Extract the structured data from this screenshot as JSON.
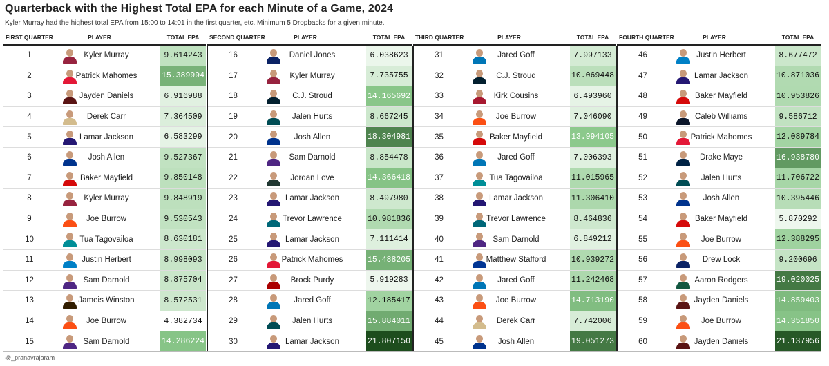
{
  "title": "Quarterback with the Highest Total EPA for each Minute of a Game, 2024",
  "subtitle": "Kyler Murray had the highest total EPA from 15:00 to 14:01 in the first quarter, etc. Minimum 5 Dropbacks for a given minute.",
  "footer": "@_pranavrajaram",
  "headers": {
    "player": "PLAYER",
    "epa": "TOTAL EPA"
  },
  "chart_data": {
    "type": "table",
    "color_scale": {
      "low": "#ffffff",
      "mid": "#8cc98c",
      "high": "#1d4d1d",
      "domain": [
        4.38,
        21.81
      ]
    },
    "quarters": [
      {
        "label": "FIRST QUARTER",
        "rows": [
          {
            "minute": "1",
            "player": "Kyler Murray",
            "epa": "9.614243",
            "team_color": "#97233F"
          },
          {
            "minute": "2",
            "player": "Patrick Mahomes",
            "epa": "15.389994",
            "team_color": "#E31837"
          },
          {
            "minute": "3",
            "player": "Jayden Daniels",
            "epa": "6.916988",
            "team_color": "#5A1414"
          },
          {
            "minute": "4",
            "player": "Derek Carr",
            "epa": "7.364509",
            "team_color": "#D3BC8D"
          },
          {
            "minute": "5",
            "player": "Lamar Jackson",
            "epa": "6.583299",
            "team_color": "#241773"
          },
          {
            "minute": "6",
            "player": "Josh Allen",
            "epa": "9.527367",
            "team_color": "#00338D"
          },
          {
            "minute": "7",
            "player": "Baker Mayfield",
            "epa": "9.850148",
            "team_color": "#D50A0A"
          },
          {
            "minute": "8",
            "player": "Kyler Murray",
            "epa": "9.848919",
            "team_color": "#97233F"
          },
          {
            "minute": "9",
            "player": "Joe Burrow",
            "epa": "9.530543",
            "team_color": "#FB4F14"
          },
          {
            "minute": "10",
            "player": "Tua Tagovailoa",
            "epa": "8.630181",
            "team_color": "#008E97"
          },
          {
            "minute": "11",
            "player": "Justin Herbert",
            "epa": "8.998093",
            "team_color": "#0080C6"
          },
          {
            "minute": "12",
            "player": "Sam Darnold",
            "epa": "8.875704",
            "team_color": "#4F2683"
          },
          {
            "minute": "13",
            "player": "Jameis Winston",
            "epa": "8.572531",
            "team_color": "#311D00"
          },
          {
            "minute": "14",
            "player": "Joe Burrow",
            "epa": "4.382734",
            "team_color": "#FB4F14"
          },
          {
            "minute": "15",
            "player": "Sam Darnold",
            "epa": "14.286224",
            "team_color": "#4F2683"
          }
        ]
      },
      {
        "label": "SECOND QUARTER",
        "rows": [
          {
            "minute": "16",
            "player": "Daniel Jones",
            "epa": "6.038623",
            "team_color": "#0B2265"
          },
          {
            "minute": "17",
            "player": "Kyler Murray",
            "epa": "7.735755",
            "team_color": "#97233F"
          },
          {
            "minute": "18",
            "player": "C.J. Stroud",
            "epa": "14.165692",
            "team_color": "#03202F"
          },
          {
            "minute": "19",
            "player": "Jalen Hurts",
            "epa": "8.667245",
            "team_color": "#004C54"
          },
          {
            "minute": "20",
            "player": "Josh Allen",
            "epa": "18.304981",
            "team_color": "#00338D"
          },
          {
            "minute": "21",
            "player": "Sam Darnold",
            "epa": "8.854478",
            "team_color": "#4F2683"
          },
          {
            "minute": "22",
            "player": "Jordan Love",
            "epa": "14.366418",
            "team_color": "#203731"
          },
          {
            "minute": "23",
            "player": "Lamar Jackson",
            "epa": "8.497980",
            "team_color": "#241773"
          },
          {
            "minute": "24",
            "player": "Trevor Lawrence",
            "epa": "10.981836",
            "team_color": "#006778"
          },
          {
            "minute": "25",
            "player": "Lamar Jackson",
            "epa": "7.111414",
            "team_color": "#241773"
          },
          {
            "minute": "26",
            "player": "Patrick Mahomes",
            "epa": "15.488205",
            "team_color": "#E31837"
          },
          {
            "minute": "27",
            "player": "Brock Purdy",
            "epa": "5.919283",
            "team_color": "#AA0000"
          },
          {
            "minute": "28",
            "player": "Jared Goff",
            "epa": "12.185417",
            "team_color": "#0076B6"
          },
          {
            "minute": "29",
            "player": "Jalen Hurts",
            "epa": "15.884011",
            "team_color": "#004C54"
          },
          {
            "minute": "30",
            "player": "Lamar Jackson",
            "epa": "21.807150",
            "team_color": "#241773"
          }
        ]
      },
      {
        "label": "THIRD QUARTER",
        "rows": [
          {
            "minute": "31",
            "player": "Jared Goff",
            "epa": "7.997133",
            "team_color": "#0076B6"
          },
          {
            "minute": "32",
            "player": "C.J. Stroud",
            "epa": "10.069448",
            "team_color": "#03202F"
          },
          {
            "minute": "33",
            "player": "Kirk Cousins",
            "epa": "6.493960",
            "team_color": "#A71930"
          },
          {
            "minute": "34",
            "player": "Joe Burrow",
            "epa": "7.046090",
            "team_color": "#FB4F14"
          },
          {
            "minute": "35",
            "player": "Baker Mayfield",
            "epa": "13.994105",
            "team_color": "#D50A0A"
          },
          {
            "minute": "36",
            "player": "Jared Goff",
            "epa": "7.006393",
            "team_color": "#0076B6"
          },
          {
            "minute": "37",
            "player": "Tua Tagovailoa",
            "epa": "11.015965",
            "team_color": "#008E97"
          },
          {
            "minute": "38",
            "player": "Lamar Jackson",
            "epa": "11.306410",
            "team_color": "#241773"
          },
          {
            "minute": "39",
            "player": "Trevor Lawrence",
            "epa": "8.464836",
            "team_color": "#006778"
          },
          {
            "minute": "40",
            "player": "Sam Darnold",
            "epa": "6.849212",
            "team_color": "#4F2683"
          },
          {
            "minute": "41",
            "player": "Matthew Stafford",
            "epa": "10.939272",
            "team_color": "#003594"
          },
          {
            "minute": "42",
            "player": "Jared Goff",
            "epa": "11.242468",
            "team_color": "#0076B6"
          },
          {
            "minute": "43",
            "player": "Joe Burrow",
            "epa": "14.713190",
            "team_color": "#FB4F14"
          },
          {
            "minute": "44",
            "player": "Derek Carr",
            "epa": "7.742006",
            "team_color": "#D3BC8D"
          },
          {
            "minute": "45",
            "player": "Josh Allen",
            "epa": "19.051273",
            "team_color": "#00338D"
          }
        ]
      },
      {
        "label": "FOURTH QUARTER",
        "rows": [
          {
            "minute": "46",
            "player": "Justin Herbert",
            "epa": "8.677472",
            "team_color": "#0080C6"
          },
          {
            "minute": "47",
            "player": "Lamar Jackson",
            "epa": "10.871036",
            "team_color": "#241773"
          },
          {
            "minute": "48",
            "player": "Baker Mayfield",
            "epa": "10.953826",
            "team_color": "#D50A0A"
          },
          {
            "minute": "49",
            "player": "Caleb Williams",
            "epa": "9.586712",
            "team_color": "#0B162A"
          },
          {
            "minute": "50",
            "player": "Patrick Mahomes",
            "epa": "12.089784",
            "team_color": "#E31837"
          },
          {
            "minute": "51",
            "player": "Drake Maye",
            "epa": "16.938780",
            "team_color": "#002244"
          },
          {
            "minute": "52",
            "player": "Jalen Hurts",
            "epa": "11.706722",
            "team_color": "#004C54"
          },
          {
            "minute": "53",
            "player": "Josh Allen",
            "epa": "10.395446",
            "team_color": "#00338D"
          },
          {
            "minute": "54",
            "player": "Baker Mayfield",
            "epa": "5.870292",
            "team_color": "#D50A0A"
          },
          {
            "minute": "55",
            "player": "Joe Burrow",
            "epa": "12.388295",
            "team_color": "#FB4F14"
          },
          {
            "minute": "56",
            "player": "Drew Lock",
            "epa": "9.200696",
            "team_color": "#0B2265"
          },
          {
            "minute": "57",
            "player": "Aaron Rodgers",
            "epa": "19.020025",
            "team_color": "#125740"
          },
          {
            "minute": "58",
            "player": "Jayden Daniels",
            "epa": "14.859403",
            "team_color": "#5A1414"
          },
          {
            "minute": "59",
            "player": "Joe Burrow",
            "epa": "14.351850",
            "team_color": "#FB4F14"
          },
          {
            "minute": "60",
            "player": "Jayden Daniels",
            "epa": "21.137956",
            "team_color": "#5A1414"
          }
        ]
      }
    ]
  }
}
